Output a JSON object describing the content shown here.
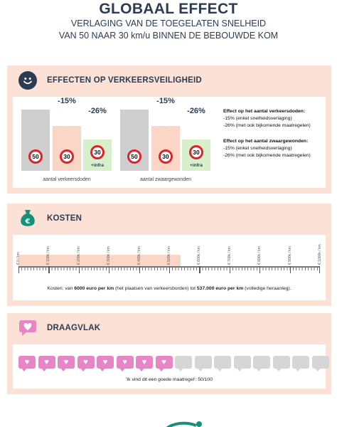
{
  "header": {
    "title": "GLOBAAL EFFECT",
    "subtitle_1": "VERLAGING VAN DE TOEGELATEN SNELHEID",
    "subtitle_2": "VAN 50 NAAR 30 km/u BINNEN DE BEBOUWDE KOM"
  },
  "safety": {
    "title": "EFFECTEN OP VERKEERSVEILIGHEID",
    "icon": "smiley-icon",
    "charts": [
      {
        "label": "aantal verkeersdoden",
        "baseline_sign": "50",
        "reduction_1_pct": "-15%",
        "reduction_1_sign": "30",
        "reduction_2_pct": "-26%",
        "reduction_2_sign": "30",
        "reduction_2_note": "+infra",
        "values": [
          100,
          85,
          74
        ]
      },
      {
        "label": "aantal zwaargewonden",
        "baseline_sign": "50",
        "reduction_1_pct": "-15%",
        "reduction_1_sign": "30",
        "reduction_2_pct": "-26%",
        "reduction_2_sign": "30",
        "reduction_2_note": "+infra",
        "values": [
          100,
          85,
          74
        ]
      }
    ],
    "text": {
      "deaths_heading": "Effect op het aantal verkeersdoden:",
      "deaths_line_1": "-15% (enkel snelheidsverlaging)",
      "deaths_line_2": "-26% (met ook bijkomende maatregelen)",
      "injured_heading": "Effect op het aantal zwaargewonden:",
      "injured_line_1": "-15% (enkel snelheidsverlaging)",
      "injured_line_2": "-26% (met ook bijkomende maatregelen)"
    },
    "colors": {
      "baseline": "#cfcfcf",
      "speed_only": "#fbd6c7",
      "with_infra": "#d8efcc",
      "sign_ring": "#d8262c"
    }
  },
  "costs": {
    "title": "KOSTEN",
    "icon": "money-bag-icon",
    "scale_max": 1000000,
    "range_filled_to": 537000,
    "tick_labels": [
      "€ 0 / km",
      "€ 100k / km",
      "€ 200k / km",
      "€ 300k / km",
      "€ 400k / km",
      "€ 500k / km",
      "€ 600k / km",
      "€ 700k / km",
      "€ 800k / km",
      "€ 900k / km",
      "€ 1000k / km"
    ],
    "note_prefix": "Kosten: van ",
    "note_low": "6000 euro per km",
    "note_mid": " (het plaatsen van verkeersborden) tot ",
    "note_high": "537.000 euro per km",
    "note_suffix": " (volledige heraanleg)."
  },
  "support": {
    "title": "DRAAGVLAK",
    "icon": "heart-chat-icon",
    "score": 50,
    "max": 100,
    "hearts_total": 16,
    "hearts_filled": 8,
    "note": "'Ik vind dit een goede maatregel': 50/100",
    "colors": {
      "filled": "#e785c6",
      "empty": "#d6d6d6"
    }
  }
}
